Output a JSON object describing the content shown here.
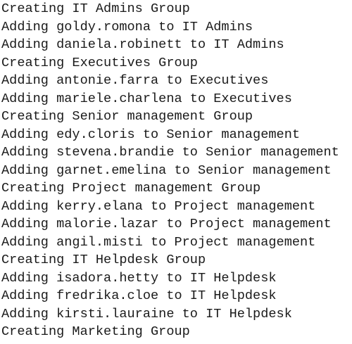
{
  "console": {
    "lines": [
      "Creating IT Admins Group",
      "Adding goldy.romona to IT Admins",
      "Adding daniela.robinett to IT Admins",
      "Creating Executives Group",
      "Adding antonie.farra to Executives",
      "Adding mariele.charlena to Executives",
      "Creating Senior management Group",
      "Adding edy.cloris to Senior management",
      "Adding stevena.brandie to Senior management",
      "Adding garnet.emelina to Senior management",
      "Creating Project management Group",
      "Adding kerry.elana to Project management",
      "Adding malorie.lazar to Project management",
      "Adding angil.misti to Project management",
      "Creating IT Helpdesk Group",
      "Adding isadora.hetty to IT Helpdesk",
      "Adding fredrika.cloe to IT Helpdesk",
      "Adding kirsti.lauraine to IT Helpdesk",
      "Creating Marketing Group"
    ]
  }
}
